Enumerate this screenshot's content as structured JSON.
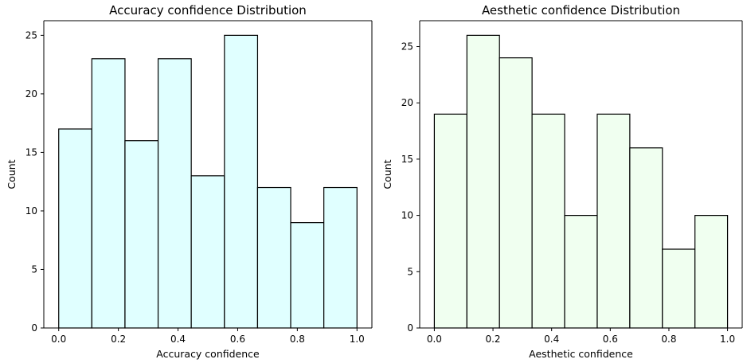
{
  "chart_data": [
    {
      "type": "bar",
      "title": "Accuracy confidence Distribution",
      "xlabel": "Accuracy confidence",
      "ylabel": "Count",
      "bin_edges": [
        0.0,
        0.1111,
        0.2222,
        0.3333,
        0.4444,
        0.5556,
        0.6667,
        0.7778,
        0.8889,
        1.0
      ],
      "values": [
        17,
        23,
        16,
        23,
        13,
        25,
        12,
        9,
        12
      ],
      "xticks": [
        "0.0",
        "0.2",
        "0.4",
        "0.6",
        "0.8",
        "1.0"
      ],
      "yticks": [
        "0",
        "5",
        "10",
        "15",
        "20",
        "25"
      ],
      "xlim": [
        -0.05,
        1.05
      ],
      "ylim": [
        0,
        26.25
      ],
      "bar_color": "#e0ffff",
      "grid": false
    },
    {
      "type": "bar",
      "title": "Aesthetic confidence Distribution",
      "xlabel": "Aesthetic confidence",
      "ylabel": "Count",
      "bin_edges": [
        0.0,
        0.1111,
        0.2222,
        0.3333,
        0.4444,
        0.5556,
        0.6667,
        0.7778,
        0.8889,
        1.0
      ],
      "values": [
        19,
        26,
        24,
        19,
        10,
        19,
        16,
        7,
        10
      ],
      "xticks": [
        "0.0",
        "0.2",
        "0.4",
        "0.6",
        "0.8",
        "1.0"
      ],
      "yticks": [
        "0",
        "5",
        "10",
        "15",
        "20",
        "25"
      ],
      "xlim": [
        -0.05,
        1.05
      ],
      "ylim": [
        0,
        27.3
      ],
      "bar_color": "#f0fff0",
      "grid": false
    }
  ]
}
